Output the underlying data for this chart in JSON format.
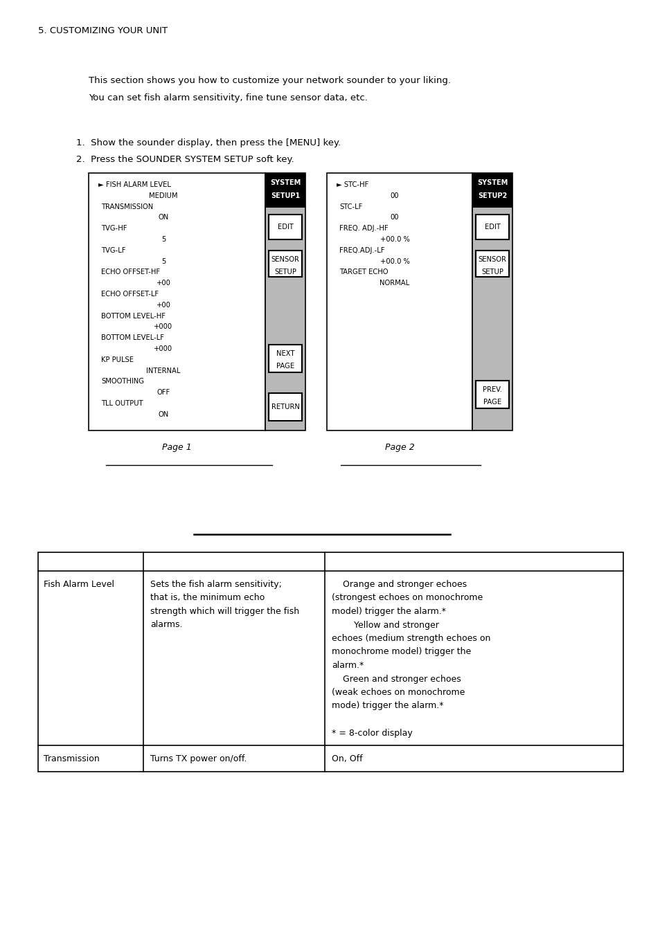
{
  "bg_color": "#ffffff",
  "page_width": 9.54,
  "page_height": 13.51,
  "section_title": "5. CUSTOMIZING YOUR UNIT",
  "intro_text_line1": "This section shows you how to customize your network sounder to your liking.",
  "intro_text_line2": "You can set fish alarm sensitivity, fine tune sensor data, etc.",
  "step1": "Show the sounder display, then press the [MENU] key.",
  "step2": "Press the SOUNDER SYSTEM SETUP soft key.",
  "page1_menu_lines": [
    "► FISH ALARM LEVEL",
    "MEDIUM",
    "TRANSMISSION",
    "ON",
    "TVG-HF",
    "5",
    "TVG-LF",
    "5",
    "ECHO OFFSET-HF",
    "+00",
    "ECHO OFFSET-LF",
    "+00",
    "BOTTOM LEVEL-HF",
    "+000",
    "BOTTOM LEVEL-LF",
    "+000",
    "KP PULSE",
    "INTERNAL",
    "SMOOTHING",
    "OFF",
    "TLL OUTPUT",
    "ON"
  ],
  "page2_menu_lines": [
    "► STC-HF",
    "00",
    "STC-LF",
    "00",
    "FREQ. ADJ.-HF",
    "+00.0 %",
    "FREQ.ADJ.-LF",
    "+00.0 %",
    "TARGET ECHO",
    "NORMAL"
  ],
  "page1_label": "Page 1",
  "page2_label": "Page 2",
  "table_row1_col1": "Fish Alarm Level",
  "table_row1_col2_lines": [
    "Sets the fish alarm sensitivity;",
    "that is, the minimum echo",
    "strength which will trigger the fish",
    "alarms."
  ],
  "table_row1_col3_lines": [
    "    Orange and stronger echoes",
    "(strongest echoes on monochrome",
    "model) trigger the alarm.*",
    "        Yellow and stronger",
    "echoes (medium strength echoes on",
    "monochrome model) trigger the",
    "alarm.*",
    "    Green and stronger echoes",
    "(weak echoes on monochrome",
    "mode) trigger the alarm.*",
    "",
    "* = 8-color display"
  ],
  "table_row2_col1": "Transmission",
  "table_row2_col2": "Turns TX power on/off.",
  "table_row2_col3": "On, Off"
}
